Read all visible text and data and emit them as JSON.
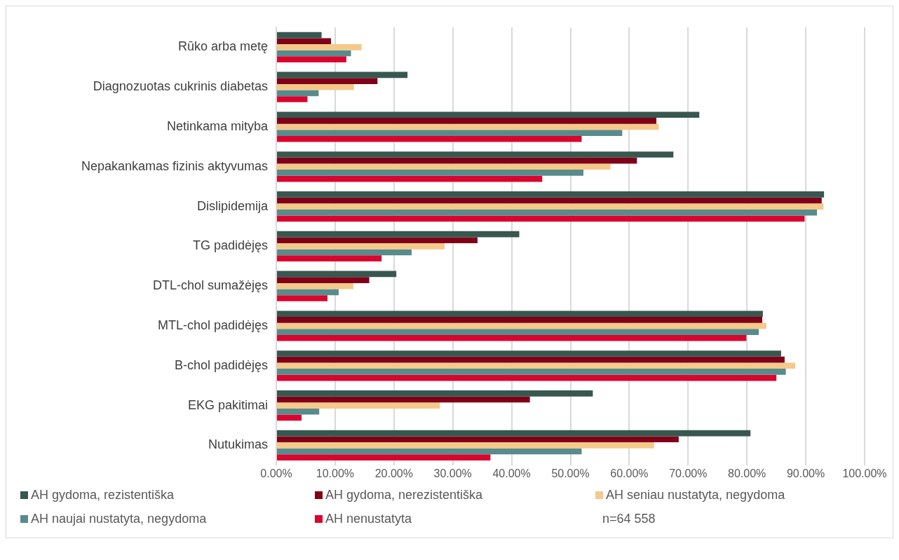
{
  "chart_data": {
    "type": "bar",
    "orientation": "horizontal",
    "categories": [
      "Rūko arba metę",
      "Diagnozuotas cukrinis diabetas",
      "Netinkama mityba",
      "Nepakankamas fizinis aktyvumas",
      "Dislipidemija",
      "TG padidėjęs",
      "DTL-chol sumažėjęs",
      "MTL-chol padidėjęs",
      "B-chol padidėjęs",
      "EKG pakitimai",
      "Nutukimas"
    ],
    "series": [
      {
        "name": "AH gydoma, rezistentiška",
        "color": "#37574f",
        "values": [
          7.7,
          22.3,
          71.9,
          67.5,
          93.1,
          41.3,
          20.4,
          82.7,
          85.8,
          53.8,
          80.6
        ]
      },
      {
        "name": "AH gydoma, nerezistentiška",
        "color": "#800018",
        "values": [
          9.3,
          17.2,
          64.6,
          61.3,
          92.7,
          34.2,
          15.8,
          82.6,
          86.4,
          43.1,
          68.4
        ]
      },
      {
        "name": "AH seniau nustatyta, negydoma",
        "color": "#f4c98a",
        "values": [
          14.5,
          13.2,
          65.0,
          56.8,
          93.0,
          28.6,
          13.1,
          83.3,
          88.2,
          27.8,
          64.2
        ]
      },
      {
        "name": "AH naujai nustatyta, negydoma",
        "color": "#588b8b",
        "values": [
          12.7,
          7.2,
          58.8,
          52.2,
          91.9,
          23.0,
          10.6,
          82.0,
          86.6,
          7.3,
          51.9
        ]
      },
      {
        "name": "AH nenustatyta",
        "color": "#d9052f",
        "values": [
          11.9,
          5.3,
          51.9,
          45.2,
          89.8,
          17.9,
          8.7,
          79.9,
          85.0,
          4.3,
          36.4
        ]
      }
    ],
    "xlim": [
      0,
      100
    ],
    "xticks": [
      {
        "value": 0,
        "label": "0.00%"
      },
      {
        "value": 10,
        "label": "10.00%"
      },
      {
        "value": 20,
        "label": "20.00%"
      },
      {
        "value": 30,
        "label": "30.00%"
      },
      {
        "value": 40,
        "label": "40.00%"
      },
      {
        "value": 50,
        "label": "50.00%"
      },
      {
        "value": 60,
        "label": "60.00%"
      },
      {
        "value": 70,
        "label": "70.00%"
      },
      {
        "value": 80,
        "label": "80.00%"
      },
      {
        "value": 90,
        "label": "90.00%"
      },
      {
        "value": 100,
        "label": "100.00%"
      }
    ],
    "grid": "x",
    "legend": "bottom",
    "annotations": [
      "n=64 558"
    ]
  }
}
